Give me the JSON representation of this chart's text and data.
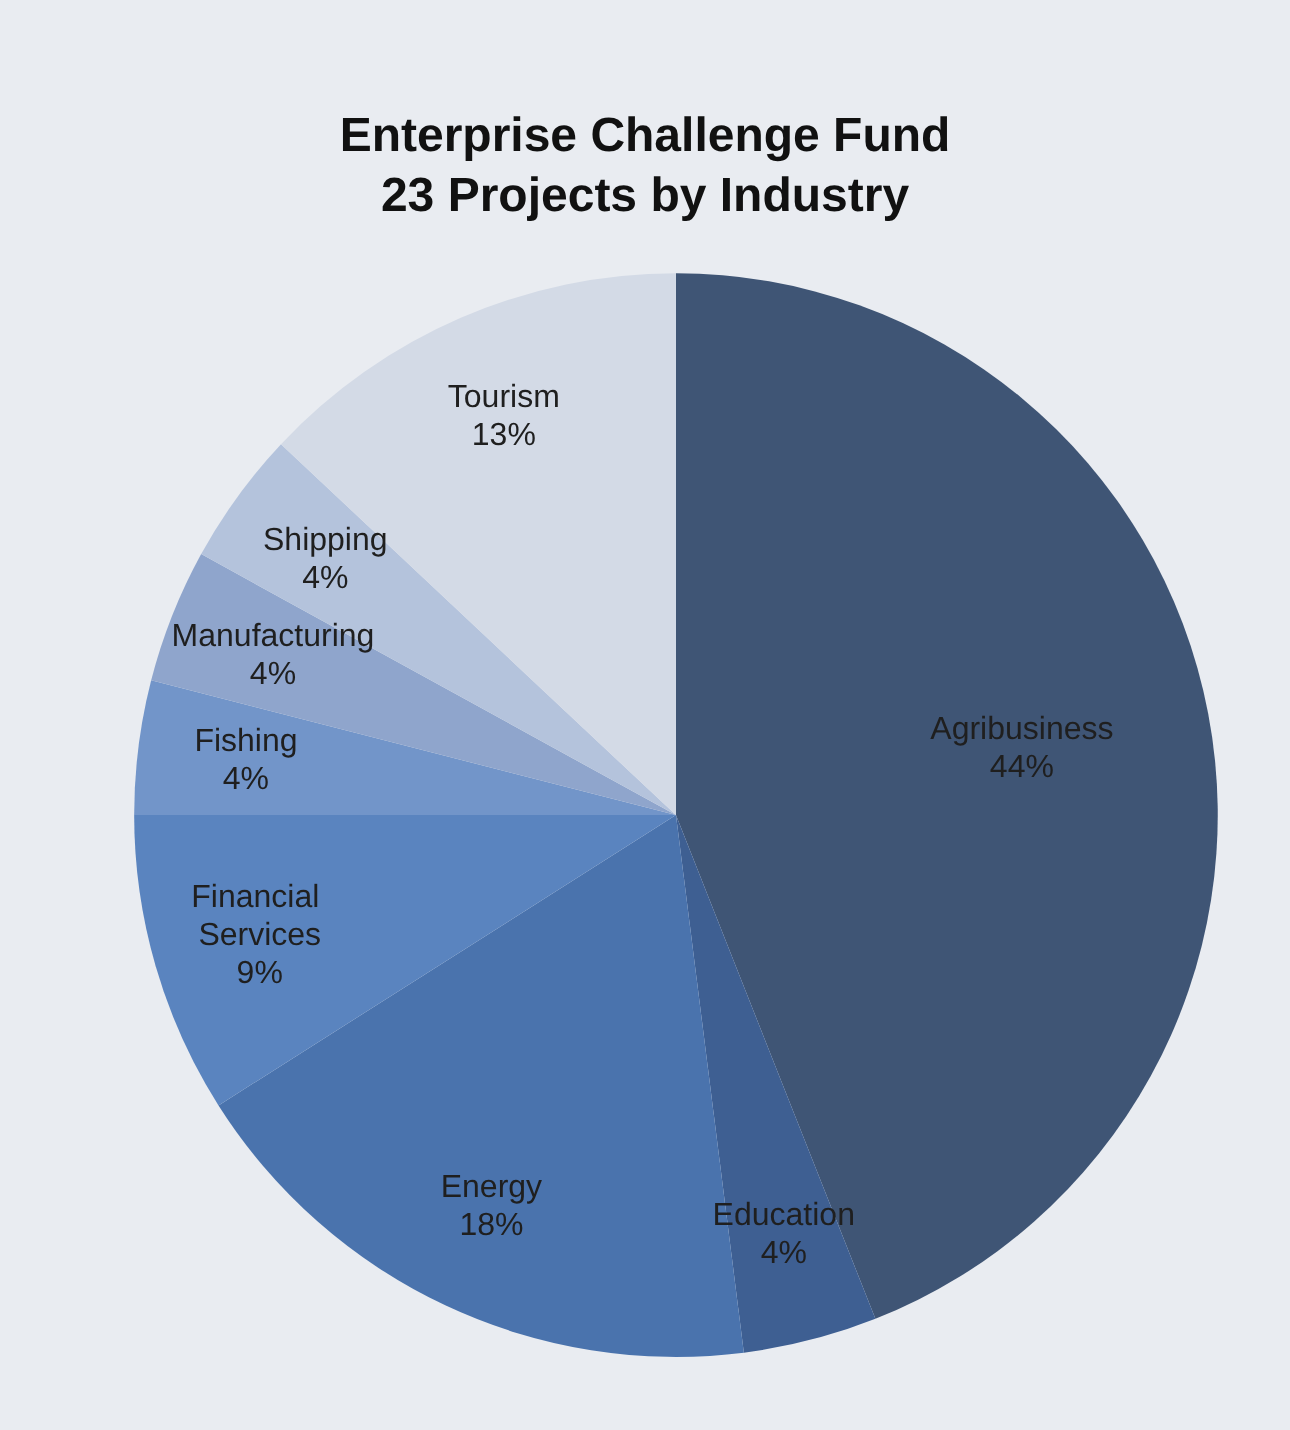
{
  "chart_data": {
    "type": "pie",
    "title": "Enterprise Challenge Fund\n23 Projects by Industry",
    "categories": [
      "Agribusiness",
      "Education",
      "Energy",
      "Financial Services",
      "Fishing",
      "Manufacturing",
      "Shipping",
      "Tourism"
    ],
    "values": [
      44,
      4,
      18,
      9,
      4,
      4,
      4,
      13
    ],
    "value_labels": [
      "44%",
      "4%",
      "18%",
      "9%",
      "4%",
      "4%",
      "4%",
      "13%"
    ],
    "colors": [
      "#3f5575",
      "#3e5f92",
      "#4a73ad",
      "#5a84bf",
      "#7295c9",
      "#8fa5cc",
      "#b4c3dc",
      "#d3dae6"
    ],
    "legend": false
  }
}
